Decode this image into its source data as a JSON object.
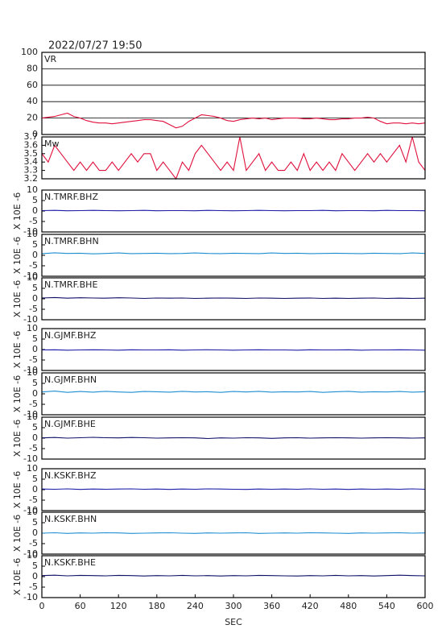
{
  "chart_data": [
    {
      "type": "line",
      "title": "2022/07/27 19:50",
      "x": [
        0,
        10,
        20,
        30,
        40,
        50,
        60,
        70,
        80,
        90,
        100,
        110,
        120,
        130,
        140,
        150,
        160,
        170,
        180,
        190,
        200,
        210,
        220,
        230,
        240,
        250,
        260,
        270,
        280,
        290,
        300,
        310,
        320,
        330,
        340,
        350,
        360,
        370,
        380,
        390,
        400,
        410,
        420,
        430,
        440,
        450,
        460,
        470,
        480,
        490,
        500,
        510,
        520,
        530,
        540,
        550,
        560,
        570,
        580,
        590,
        600
      ],
      "series": [
        {
          "name": "VR",
          "color": "#e0103c",
          "values": [
            20,
            21,
            22,
            24,
            26,
            22,
            20,
            17,
            15,
            14,
            14,
            13,
            14,
            15,
            16,
            17,
            18,
            18,
            17,
            16,
            12,
            8,
            10,
            16,
            20,
            24,
            23,
            22,
            20,
            17,
            16,
            18,
            19,
            20,
            19,
            20,
            18,
            19,
            20,
            20,
            20,
            19,
            19,
            20,
            19,
            18,
            18,
            19,
            19,
            20,
            20,
            21,
            20,
            16,
            13,
            14,
            14,
            13,
            14,
            13,
            14
          ]
        }
      ],
      "xlim": [
        0,
        600
      ],
      "ylim": [
        0,
        100
      ],
      "yticks": [
        0,
        20,
        40,
        60,
        80,
        100
      ],
      "grid": true
    },
    {
      "type": "line",
      "x": [
        0,
        10,
        20,
        30,
        40,
        50,
        60,
        70,
        80,
        90,
        100,
        110,
        120,
        130,
        140,
        150,
        160,
        170,
        180,
        190,
        200,
        210,
        220,
        230,
        240,
        250,
        260,
        270,
        280,
        290,
        300,
        310,
        320,
        330,
        340,
        350,
        360,
        370,
        380,
        390,
        400,
        410,
        420,
        430,
        440,
        450,
        460,
        470,
        480,
        490,
        500,
        510,
        520,
        530,
        540,
        550,
        560,
        570,
        580,
        590,
        600
      ],
      "series": [
        {
          "name": "Mw",
          "color": "#e0103c",
          "values": [
            3.5,
            3.4,
            3.6,
            3.5,
            3.4,
            3.3,
            3.4,
            3.3,
            3.4,
            3.3,
            3.3,
            3.4,
            3.3,
            3.4,
            3.5,
            3.4,
            3.5,
            3.5,
            3.3,
            3.4,
            3.3,
            3.2,
            3.4,
            3.3,
            3.5,
            3.6,
            3.5,
            3.4,
            3.3,
            3.4,
            3.3,
            3.7,
            3.3,
            3.4,
            3.5,
            3.3,
            3.4,
            3.3,
            3.3,
            3.4,
            3.3,
            3.5,
            3.3,
            3.4,
            3.3,
            3.4,
            3.3,
            3.5,
            3.4,
            3.3,
            3.4,
            3.5,
            3.4,
            3.5,
            3.4,
            3.5,
            3.6,
            3.4,
            3.7,
            3.4,
            3.3
          ]
        }
      ],
      "xlim": [
        0,
        600
      ],
      "ylim": [
        3.2,
        3.7
      ],
      "yticks": [
        3.2,
        3.3,
        3.4,
        3.5,
        3.6,
        3.7
      ]
    },
    {
      "type": "line",
      "ylabel": "X 10E -6",
      "x": [
        0,
        20,
        40,
        60,
        80,
        100,
        120,
        140,
        160,
        180,
        200,
        220,
        240,
        260,
        280,
        300,
        320,
        340,
        360,
        380,
        400,
        420,
        440,
        460,
        480,
        500,
        520,
        540,
        560,
        580,
        600
      ],
      "series": [
        {
          "name": "N.TMRF.BHZ",
          "color": "#1c1ca8",
          "values": [
            0.2,
            0.3,
            0.1,
            0.2,
            0.3,
            0.2,
            0.1,
            0.2,
            0.3,
            0.1,
            0.2,
            0.2,
            0.1,
            0.3,
            0.2,
            0.1,
            0.2,
            0.3,
            0.2,
            0.1,
            0.2,
            0.2,
            0.3,
            0.1,
            0.2,
            0.2,
            0.1,
            0.3,
            0.2,
            0.2,
            0.1
          ]
        }
      ],
      "xlim": [
        0,
        600
      ],
      "ylim": [
        -10,
        10
      ],
      "yticks": [
        -10,
        -5,
        0,
        5,
        10
      ]
    },
    {
      "type": "line",
      "ylabel": "X 10E -6",
      "x": [
        0,
        20,
        40,
        60,
        80,
        100,
        120,
        140,
        160,
        180,
        200,
        220,
        240,
        260,
        280,
        300,
        320,
        340,
        360,
        380,
        400,
        420,
        440,
        460,
        480,
        500,
        520,
        540,
        560,
        580,
        600
      ],
      "series": [
        {
          "name": "N.TMRF.BHN",
          "color": "#1e8fd0",
          "values": [
            0.8,
            1.2,
            0.9,
            1.0,
            0.7,
            0.9,
            1.1,
            0.8,
            0.9,
            1.0,
            0.8,
            0.9,
            1.1,
            0.9,
            0.8,
            1.0,
            0.9,
            0.8,
            1.1,
            0.9,
            1.0,
            0.8,
            0.9,
            1.0,
            0.9,
            0.8,
            1.0,
            0.9,
            0.8,
            1.1,
            0.9
          ]
        }
      ],
      "xlim": [
        0,
        600
      ],
      "ylim": [
        -10,
        10
      ],
      "yticks": [
        -10,
        -5,
        0,
        5,
        10
      ]
    },
    {
      "type": "line",
      "ylabel": "X 10E -6",
      "x": [
        0,
        20,
        40,
        60,
        80,
        100,
        120,
        140,
        160,
        180,
        200,
        220,
        240,
        260,
        280,
        300,
        320,
        340,
        360,
        380,
        400,
        420,
        440,
        460,
        480,
        500,
        520,
        540,
        560,
        580,
        600
      ],
      "series": [
        {
          "name": "N.TMRF.BHE",
          "color": "#101068",
          "values": [
            0.4,
            0.6,
            0.3,
            0.5,
            0.4,
            0.3,
            0.5,
            0.4,
            0.2,
            0.4,
            0.3,
            0.4,
            0.2,
            0.3,
            0.4,
            0.3,
            0.2,
            0.4,
            0.3,
            0.2,
            0.3,
            0.4,
            0.2,
            0.3,
            0.2,
            0.3,
            0.4,
            0.2,
            0.3,
            0.2,
            0.3
          ]
        }
      ],
      "xlim": [
        0,
        600
      ],
      "ylim": [
        -10,
        10
      ],
      "yticks": [
        -10,
        -5,
        0,
        5,
        10
      ]
    },
    {
      "type": "line",
      "ylabel": "X 10E -6",
      "x": [
        0,
        20,
        40,
        60,
        80,
        100,
        120,
        140,
        160,
        180,
        200,
        220,
        240,
        260,
        280,
        300,
        320,
        340,
        360,
        380,
        400,
        420,
        440,
        460,
        480,
        500,
        520,
        540,
        560,
        580,
        600
      ],
      "series": [
        {
          "name": "N.GJMF.BHZ",
          "color": "#1c1ca8",
          "values": [
            -0.2,
            -0.1,
            -0.3,
            -0.2,
            -0.1,
            -0.2,
            -0.3,
            -0.1,
            -0.2,
            -0.2,
            -0.1,
            -0.3,
            -0.2,
            -0.1,
            -0.2,
            -0.3,
            -0.2,
            -0.1,
            -0.2,
            -0.2,
            -0.3,
            -0.1,
            -0.2,
            -0.2,
            -0.1,
            -0.3,
            -0.2,
            -0.2,
            -0.1,
            -0.2,
            -0.3
          ]
        }
      ],
      "xlim": [
        0,
        600
      ],
      "ylim": [
        -10,
        10
      ],
      "yticks": [
        -10,
        -5,
        0,
        5,
        10
      ]
    },
    {
      "type": "line",
      "ylabel": "X 10E -6",
      "x": [
        0,
        20,
        40,
        60,
        80,
        100,
        120,
        140,
        160,
        180,
        200,
        220,
        240,
        260,
        280,
        300,
        320,
        340,
        360,
        380,
        400,
        420,
        440,
        460,
        480,
        500,
        520,
        540,
        560,
        580,
        600
      ],
      "series": [
        {
          "name": "N.GJMF.BHN",
          "color": "#1e8fd0",
          "values": [
            0.9,
            1.3,
            0.7,
            1.1,
            0.8,
            1.2,
            0.9,
            0.7,
            1.1,
            1.0,
            0.8,
            1.2,
            0.9,
            1.0,
            0.7,
            1.1,
            0.9,
            1.2,
            0.8,
            1.0,
            0.9,
            1.1,
            0.7,
            1.0,
            1.2,
            0.8,
            1.0,
            0.9,
            1.1,
            0.8,
            1.0
          ]
        }
      ],
      "xlim": [
        0,
        600
      ],
      "ylim": [
        -10,
        10
      ],
      "yticks": [
        -10,
        -5,
        0,
        5,
        10
      ]
    },
    {
      "type": "line",
      "ylabel": "X 10E -6",
      "x": [
        0,
        20,
        40,
        60,
        80,
        100,
        120,
        140,
        160,
        180,
        200,
        220,
        240,
        260,
        280,
        300,
        320,
        340,
        360,
        380,
        400,
        420,
        440,
        460,
        480,
        500,
        520,
        540,
        560,
        580,
        600
      ],
      "series": [
        {
          "name": "N.GJMF.BHE",
          "color": "#101068",
          "values": [
            0.1,
            0.3,
            0,
            0.2,
            0.4,
            0.2,
            0.1,
            0.3,
            0.2,
            0,
            0.1,
            0.2,
            0.1,
            -0.2,
            0.1,
            0,
            0.2,
            0.1,
            -0.1,
            0.1,
            0.2,
            0,
            0.1,
            0.2,
            0.1,
            0,
            0.1,
            0.2,
            0.1,
            0,
            0.1
          ]
        }
      ],
      "xlim": [
        0,
        600
      ],
      "ylim": [
        -10,
        10
      ],
      "yticks": [
        -10,
        -5,
        0,
        5,
        10
      ]
    },
    {
      "type": "line",
      "ylabel": "X 10E -6",
      "x": [
        0,
        20,
        40,
        60,
        80,
        100,
        120,
        140,
        160,
        180,
        200,
        220,
        240,
        260,
        280,
        300,
        320,
        340,
        360,
        380,
        400,
        420,
        440,
        460,
        480,
        500,
        520,
        540,
        560,
        580,
        600
      ],
      "series": [
        {
          "name": "N.KSKF.BHZ",
          "color": "#1c1ca8",
          "values": [
            0.3,
            0.2,
            0.4,
            0.1,
            0.3,
            0.2,
            0.3,
            0.4,
            0.2,
            0.3,
            0.1,
            0.3,
            0.2,
            0.4,
            0.3,
            0.2,
            0.1,
            0.3,
            0.2,
            0.3,
            0.2,
            0.4,
            0.2,
            0.3,
            0.1,
            0.3,
            0.2,
            0.3,
            0.2,
            0.4,
            0.2
          ]
        }
      ],
      "xlim": [
        0,
        600
      ],
      "ylim": [
        -10,
        10
      ],
      "yticks": [
        -10,
        -5,
        0,
        5,
        10
      ]
    },
    {
      "type": "line",
      "ylabel": "X 10E -6",
      "x": [
        0,
        20,
        40,
        60,
        80,
        100,
        120,
        140,
        160,
        180,
        200,
        220,
        240,
        260,
        280,
        300,
        320,
        340,
        360,
        380,
        400,
        420,
        440,
        460,
        480,
        500,
        520,
        540,
        560,
        580,
        600
      ],
      "series": [
        {
          "name": "N.KSKF.BHN",
          "color": "#1e8fd0",
          "values": [
            0,
            0.2,
            -0.1,
            0.1,
            0,
            0.2,
            0.1,
            -0.1,
            0,
            0.1,
            0.2,
            0,
            -0.1,
            0.1,
            0,
            0.1,
            0.2,
            -0.1,
            0,
            0.1,
            0,
            0.2,
            0.1,
            0,
            -0.1,
            0.1,
            0,
            0.1,
            0.2,
            0,
            0.1
          ]
        }
      ],
      "xlim": [
        0,
        600
      ],
      "ylim": [
        -10,
        10
      ],
      "yticks": [
        -10,
        -5,
        0,
        5,
        10
      ]
    },
    {
      "type": "line",
      "ylabel": "X 10E -6",
      "xlabel": "SEC",
      "x": [
        0,
        20,
        40,
        60,
        80,
        100,
        120,
        140,
        160,
        180,
        200,
        220,
        240,
        260,
        280,
        300,
        320,
        340,
        360,
        380,
        400,
        420,
        440,
        460,
        480,
        500,
        520,
        540,
        560,
        580,
        600
      ],
      "series": [
        {
          "name": "N.KSKF.BHE",
          "color": "#101068",
          "values": [
            0.5,
            0.7,
            0.4,
            0.6,
            0.5,
            0.4,
            0.6,
            0.5,
            0.3,
            0.5,
            0.4,
            0.6,
            0.4,
            0.5,
            0.3,
            0.5,
            0.4,
            0.6,
            0.5,
            0.4,
            0.3,
            0.5,
            0.4,
            0.6,
            0.4,
            0.5,
            0.3,
            0.5,
            0.7,
            0.5,
            0.4
          ]
        }
      ],
      "xlim": [
        0,
        600
      ],
      "ylim": [
        -10,
        10
      ],
      "yticks": [
        -10,
        -5,
        0,
        5,
        10
      ],
      "xticks": [
        0,
        60,
        120,
        180,
        240,
        300,
        360,
        420,
        480,
        540,
        600
      ]
    }
  ]
}
